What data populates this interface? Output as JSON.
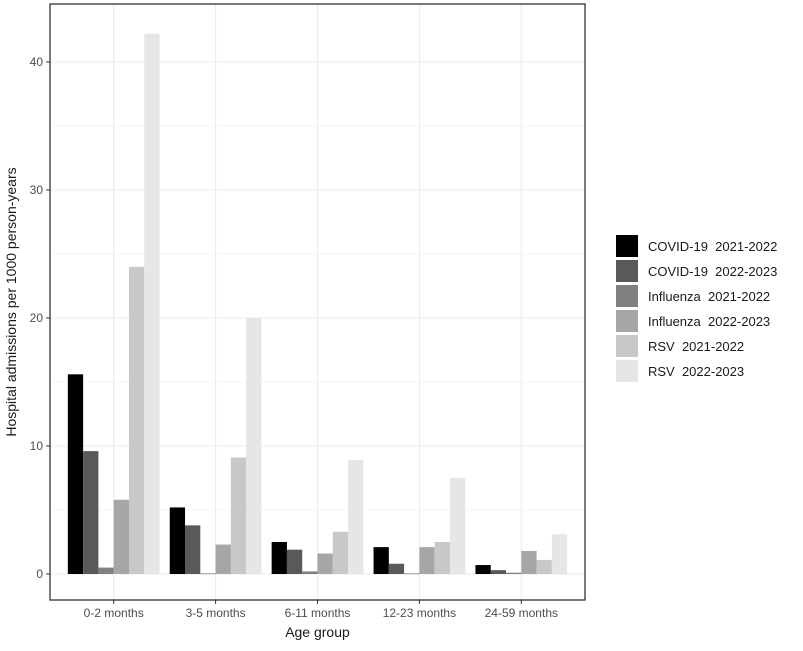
{
  "chart_data": {
    "type": "bar",
    "xlabel": "Age group",
    "ylabel": "Hospital admissions per 1000 person-years",
    "categories": [
      "0-2 months",
      "3-5 months",
      "6-11 months",
      "12-23 months",
      "24-59 months"
    ],
    "ylim": [
      -2,
      44
    ],
    "yticks": [
      0,
      10,
      20,
      30,
      40
    ],
    "grid": true,
    "legend_position": "right",
    "series": [
      {
        "name": "COVID-19  2021-2022",
        "color": "#000000",
        "values": [
          15.6,
          5.2,
          2.5,
          2.1,
          0.7
        ]
      },
      {
        "name": "COVID-19  2022-2023",
        "color": "#595959",
        "values": [
          9.6,
          3.8,
          1.9,
          0.8,
          0.3
        ]
      },
      {
        "name": "Influenza  2021-2022",
        "color": "#808080",
        "values": [
          0.5,
          0.05,
          0.2,
          0.05,
          0.1
        ]
      },
      {
        "name": "Influenza  2022-2023",
        "color": "#a6a6a6",
        "values": [
          5.8,
          2.3,
          1.6,
          2.1,
          1.8
        ]
      },
      {
        "name": "RSV  2021-2022",
        "color": "#c8c8c8",
        "values": [
          24.0,
          9.1,
          3.3,
          2.5,
          1.1
        ]
      },
      {
        "name": "RSV  2022-2023",
        "color": "#e6e6e6",
        "values": [
          42.2,
          20.0,
          8.9,
          7.5,
          3.1
        ]
      }
    ]
  }
}
